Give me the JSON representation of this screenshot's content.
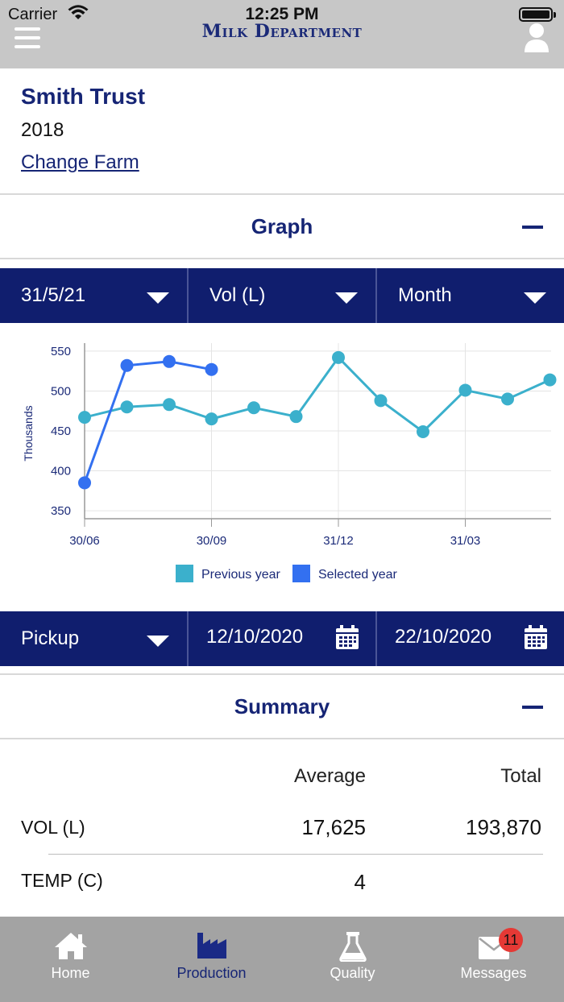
{
  "status_bar": {
    "carrier": "Carrier",
    "time": "12:25 PM"
  },
  "header": {
    "brand": "Milk Department"
  },
  "farm": {
    "name": "Smith Trust",
    "year": "2018",
    "change_link": "Change Farm"
  },
  "graph_section": {
    "title": "Graph"
  },
  "graph_filters": {
    "date": "31/5/21",
    "metric": "Vol (L)",
    "period": "Month"
  },
  "chart_data": {
    "type": "line",
    "ylabel": "Thousands",
    "yticks": [
      350,
      400,
      450,
      500,
      550
    ],
    "ylim": [
      340,
      560
    ],
    "x_tick_labels": [
      "30/06",
      "30/09",
      "31/12",
      "31/03"
    ],
    "x_count": 13,
    "legend_position": "bottom",
    "grid": true,
    "series": [
      {
        "name": "Previous year",
        "color": "#3bb0cc",
        "values": [
          467,
          480,
          483,
          465,
          479,
          468,
          542,
          488,
          449,
          501,
          490,
          514
        ]
      },
      {
        "name": "Selected year",
        "color": "#3370f0",
        "values": [
          385,
          532,
          537,
          527
        ]
      }
    ]
  },
  "pickup_filters": {
    "type": "Pickup",
    "from": "12/10/2020",
    "to": "22/10/2020"
  },
  "summary_section": {
    "title": "Summary"
  },
  "summary": {
    "col_average": "Average",
    "col_total": "Total",
    "rows": [
      {
        "label": "VOL (L)",
        "average": "17,625",
        "total": "193,870"
      },
      {
        "label": "TEMP (C)",
        "average": "4",
        "total": ""
      }
    ]
  },
  "tabs": [
    {
      "label": "Home",
      "icon": "home-icon"
    },
    {
      "label": "Production",
      "icon": "factory-icon"
    },
    {
      "label": "Quality",
      "icon": "flask-icon"
    },
    {
      "label": "Messages",
      "icon": "envelope-icon",
      "badge": "11"
    }
  ],
  "colors": {
    "primary": "#101e6e",
    "title_blue": "#162575",
    "tab_bar": "#a3a3a3"
  }
}
